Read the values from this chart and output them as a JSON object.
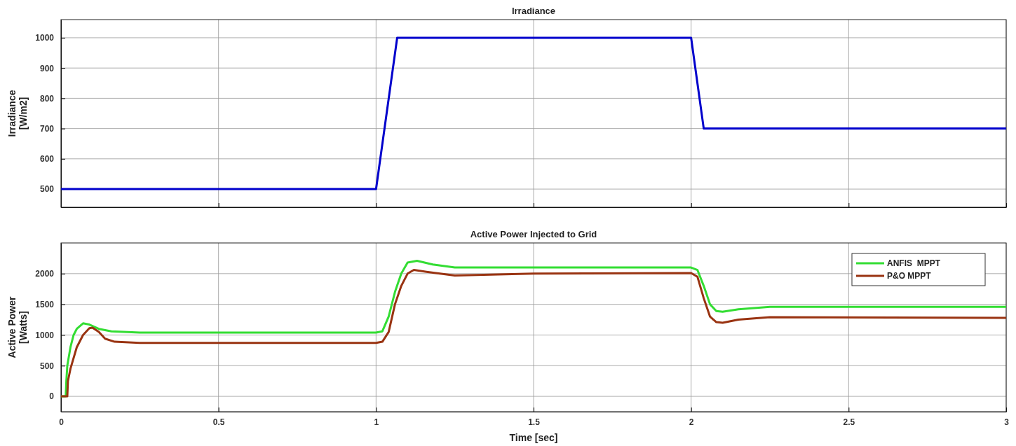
{
  "chart_data": [
    {
      "type": "line",
      "title": "Irradiance",
      "ylabel": "Irradiance [W/m2]",
      "xlim": [
        0,
        3
      ],
      "xticks": [
        0,
        0.5,
        1,
        1.5,
        2,
        2.5,
        3
      ],
      "ylim": [
        440,
        1060
      ],
      "yticks": [
        500,
        600,
        700,
        800,
        900,
        1000
      ],
      "grid": true,
      "tick_labels": "y",
      "series": [
        {
          "color": "#0000cc",
          "x": [
            0,
            1,
            1.067,
            2,
            2.04,
            3
          ],
          "values": [
            500,
            500,
            1000,
            1000,
            700,
            700
          ]
        }
      ]
    },
    {
      "type": "line",
      "title": "Active Power Injected to Grid",
      "xlabel": "Time [sec]",
      "ylabel": "Active Power [Watts]",
      "xlim": [
        0,
        3
      ],
      "xticks": [
        0,
        0.5,
        1,
        1.5,
        2,
        2.5,
        3
      ],
      "ylim": [
        -250,
        2500
      ],
      "yticks": [
        0,
        500,
        1000,
        1500,
        2000
      ],
      "grid": true,
      "legend": "top right",
      "series": [
        {
          "name": "ANFIS  MPPT",
          "color": "#33dd33",
          "x": [
            0,
            0.015,
            0.017,
            0.02,
            0.03,
            0.04,
            0.05,
            0.07,
            0.09,
            0.12,
            0.16,
            0.25,
            1.0,
            1.02,
            1.04,
            1.06,
            1.08,
            1.1,
            1.13,
            1.18,
            1.25,
            2.0,
            2.02,
            2.04,
            2.06,
            2.08,
            2.1,
            2.15,
            2.25,
            3
          ],
          "values": [
            0,
            0,
            250,
            500,
            800,
            1000,
            1100,
            1190,
            1170,
            1100,
            1060,
            1040,
            1040,
            1060,
            1300,
            1700,
            2000,
            2180,
            2210,
            2150,
            2100,
            2100,
            2060,
            1800,
            1500,
            1390,
            1380,
            1420,
            1460,
            1460
          ]
        },
        {
          "name": "P&O MPPT",
          "color": "#993311",
          "x": [
            0,
            0.02,
            0.022,
            0.03,
            0.05,
            0.07,
            0.09,
            0.1,
            0.12,
            0.14,
            0.17,
            0.25,
            1.0,
            1.02,
            1.04,
            1.06,
            1.08,
            1.1,
            1.12,
            1.16,
            1.25,
            1.5,
            2.0,
            2.02,
            2.04,
            2.06,
            2.08,
            2.1,
            2.15,
            2.25,
            3
          ],
          "values": [
            0,
            0,
            250,
            450,
            800,
            1000,
            1110,
            1120,
            1050,
            940,
            890,
            870,
            870,
            890,
            1050,
            1500,
            1800,
            2000,
            2060,
            2030,
            1970,
            2000,
            2010,
            1950,
            1600,
            1300,
            1210,
            1200,
            1250,
            1290,
            1280
          ]
        }
      ]
    }
  ]
}
